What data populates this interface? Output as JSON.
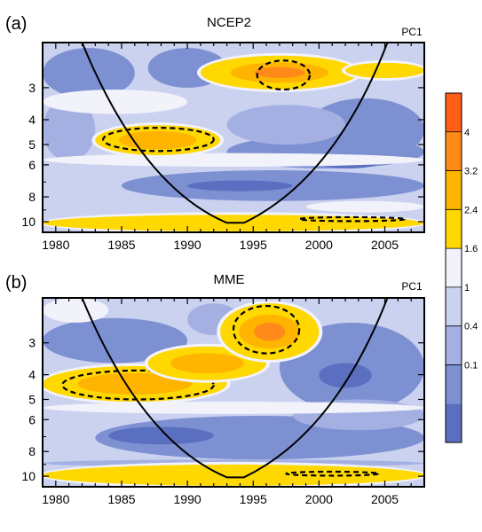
{
  "figure": {
    "colorbar": {
      "ticks": [
        4,
        3.2,
        2.4,
        1.6,
        1,
        0.4,
        0.1
      ],
      "tick_labels": [
        "4",
        "3.2",
        "2.4",
        "1.6",
        "1",
        "0.4",
        "0.1"
      ],
      "colors": [
        "#5a6fc0",
        "#7d90d2",
        "#a4b0e2",
        "#cbd2f0",
        "#f2f2fb",
        "#ffd800",
        "#ffb400",
        "#ff8a1a",
        "#ff5e14"
      ]
    }
  },
  "chart_data": [
    {
      "type": "heatmap",
      "panel_label": "(a)",
      "title": "NCEP2",
      "corner_label": "PC1",
      "xlim": [
        1979,
        2008
      ],
      "x_ticks": [
        1980,
        1985,
        1990,
        1995,
        2000,
        2005
      ],
      "x_tick_labels": [
        "1980",
        "1985",
        "1990",
        "1995",
        "2000",
        "2005"
      ],
      "y_scale": "log",
      "ylim": [
        2,
        11
      ],
      "y_ticks": [
        3,
        4,
        5,
        6,
        8,
        10
      ],
      "y_tick_labels": [
        "3",
        "4",
        "5",
        "6",
        "8",
        "10"
      ],
      "high_regions": [
        {
          "x": [
            1983,
            1992.5
          ],
          "y": [
            4.2,
            5.5
          ],
          "peak": 2.6,
          "significant_contour": [
            1983.6,
            1992,
            4.3,
            5.3
          ]
        },
        {
          "x": [
            1991,
            2003
          ],
          "y": [
            2.25,
            3.05
          ],
          "peak": 3.1,
          "significant_contour": [
            1995.3,
            1999.3,
            2.35,
            3.05
          ]
        },
        {
          "x": [
            2002,
            2008
          ],
          "y": [
            2.4,
            2.75
          ],
          "peak": 1.8
        },
        {
          "x": [
            1979,
            2008
          ],
          "y": [
            9.4,
            10.9
          ],
          "peak": 2.0,
          "significant_contour": [
            1998.5,
            2006.5,
            9.6,
            9.95
          ]
        }
      ],
      "cone_of_influence": {
        "x": [
          1979,
          1982,
          1993,
          1994.3,
          2005.2
        ],
        "y": [
          2,
          2,
          10.1,
          10.1,
          2
        ]
      }
    },
    {
      "type": "heatmap",
      "panel_label": "(b)",
      "title": "MME",
      "corner_label": "PC1",
      "xlim": [
        1979,
        2008
      ],
      "x_ticks": [
        1980,
        1985,
        1990,
        1995,
        2000,
        2005
      ],
      "x_tick_labels": [
        "1980",
        "1985",
        "1990",
        "1995",
        "2000",
        "2005"
      ],
      "y_scale": "log",
      "ylim": [
        2,
        11
      ],
      "y_ticks": [
        3,
        4,
        5,
        6,
        8,
        10
      ],
      "y_tick_labels": [
        "3",
        "4",
        "5",
        "6",
        "8",
        "10"
      ],
      "high_regions": [
        {
          "x": [
            1979,
            1993
          ],
          "y": [
            3.7,
            5.1
          ],
          "peak": 2.6,
          "significant_contour": [
            1980.5,
            1992,
            3.85,
            5.0
          ]
        },
        {
          "x": [
            1987,
            1996
          ],
          "y": [
            3.1,
            4.2
          ],
          "peak": 2.5
        },
        {
          "x": [
            1992.5,
            2000
          ],
          "y": [
            2.1,
            3.5
          ],
          "peak": 3.3,
          "significant_contour": [
            1993.5,
            1998.5,
            2.15,
            3.3
          ]
        },
        {
          "x": [
            1979,
            2008
          ],
          "y": [
            9.0,
            10.9
          ],
          "peak": 2.0,
          "significant_contour": [
            1997.5,
            2004.5,
            9.6,
            9.95
          ]
        }
      ],
      "cone_of_influence": {
        "x": [
          1979,
          1982,
          1993,
          1994.3,
          2005.2
        ],
        "y": [
          2,
          2,
          10.1,
          10.1,
          2
        ]
      }
    }
  ]
}
